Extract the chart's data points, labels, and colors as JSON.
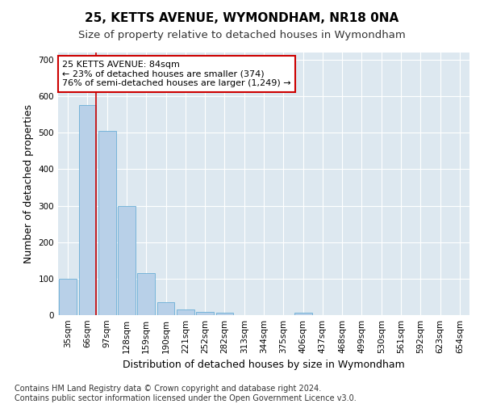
{
  "title": "25, KETTS AVENUE, WYMONDHAM, NR18 0NA",
  "subtitle": "Size of property relative to detached houses in Wymondham",
  "xlabel": "Distribution of detached houses by size in Wymondham",
  "ylabel": "Number of detached properties",
  "footnote": "Contains HM Land Registry data © Crown copyright and database right 2024.\nContains public sector information licensed under the Open Government Licence v3.0.",
  "categories": [
    "35sqm",
    "66sqm",
    "97sqm",
    "128sqm",
    "159sqm",
    "190sqm",
    "221sqm",
    "252sqm",
    "282sqm",
    "313sqm",
    "344sqm",
    "375sqm",
    "406sqm",
    "437sqm",
    "468sqm",
    "499sqm",
    "530sqm",
    "561sqm",
    "592sqm",
    "623sqm",
    "654sqm"
  ],
  "values": [
    100,
    575,
    505,
    300,
    115,
    35,
    15,
    9,
    7,
    0,
    0,
    0,
    7,
    0,
    0,
    0,
    0,
    0,
    0,
    0,
    0
  ],
  "bar_color": "#b8d0e8",
  "bar_edge_color": "#6aaed6",
  "vline_x": 1.45,
  "annotation_text": "25 KETTS AVENUE: 84sqm\n← 23% of detached houses are smaller (374)\n76% of semi-detached houses are larger (1,249) →",
  "annotation_box_color": "#ffffff",
  "annotation_box_edge": "#cc0000",
  "vline_color": "#cc0000",
  "ylim": [
    0,
    720
  ],
  "yticks": [
    0,
    100,
    200,
    300,
    400,
    500,
    600,
    700
  ],
  "background_color": "#ffffff",
  "plot_bg_color": "#dde8f0",
  "grid_color": "#ffffff",
  "title_fontsize": 11,
  "subtitle_fontsize": 9.5,
  "axis_label_fontsize": 9,
  "tick_fontsize": 7.5,
  "annotation_fontsize": 8,
  "footnote_fontsize": 7
}
